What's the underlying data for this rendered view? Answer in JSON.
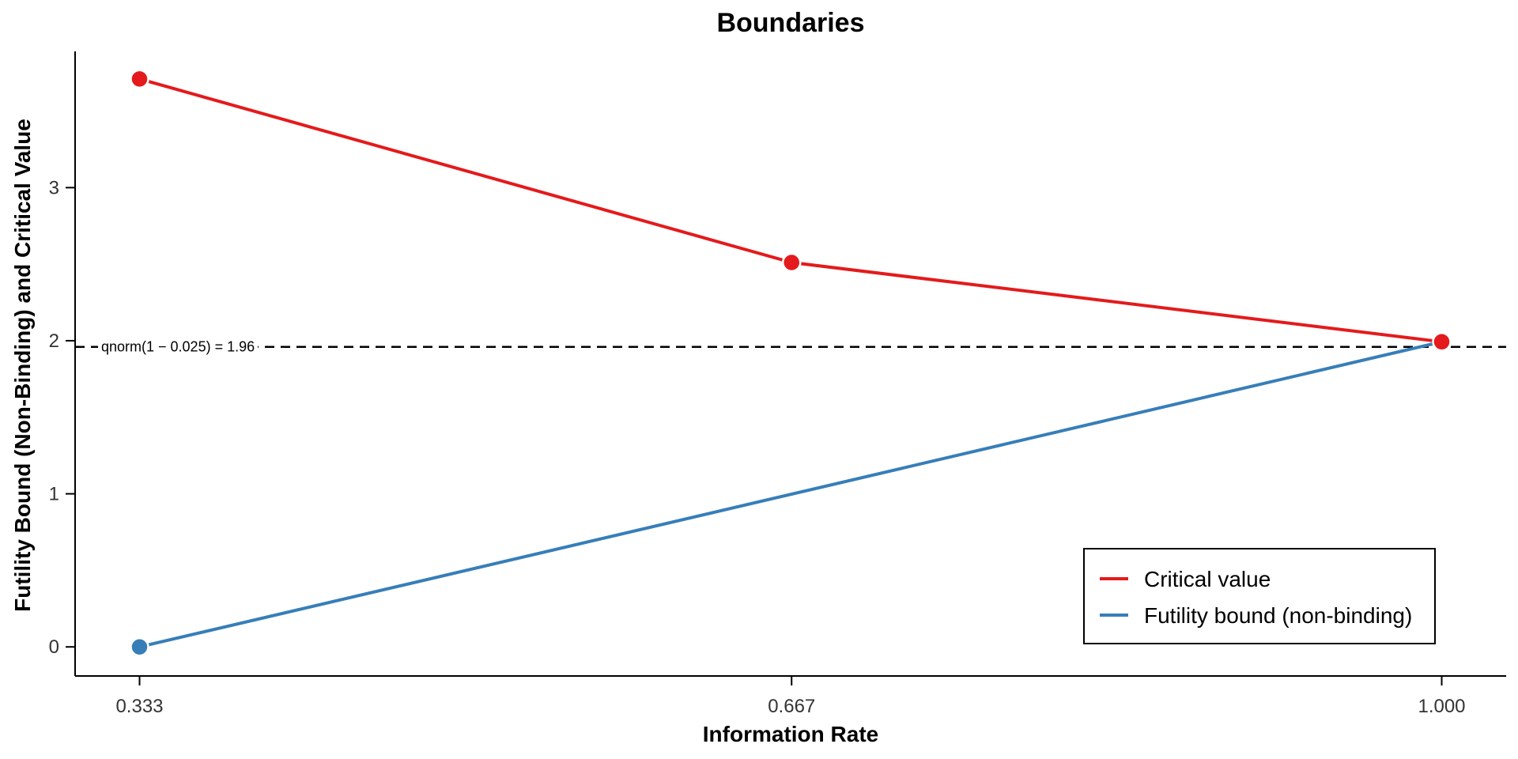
{
  "chart_data": {
    "type": "line",
    "title": "Boundaries",
    "xlabel": "Information Rate",
    "ylabel": "Futility Bound (Non-Binding) and Critical Value",
    "x": [
      0.333,
      0.667,
      1.0
    ],
    "x_tick_labels": [
      "0.333",
      "0.667",
      "1.000"
    ],
    "y_ticks": [
      0,
      1,
      2,
      3
    ],
    "y_tick_labels": [
      "0",
      "1",
      "2",
      "3"
    ],
    "xlim": [
      0.3,
      1.033
    ],
    "ylim": [
      -0.19,
      3.89
    ],
    "grid": false,
    "legend_position": "bottom-right",
    "series": [
      {
        "name": "Critical value",
        "color": "#E41A1C",
        "x": [
          0.333,
          0.667,
          1.0
        ],
        "values": [
          3.71,
          2.511,
          1.993
        ],
        "marker_points": [
          [
            0.333,
            3.71
          ],
          [
            0.667,
            2.511
          ],
          [
            1.0,
            1.993
          ]
        ]
      },
      {
        "name": "Futility bound (non-binding)",
        "color": "#377EB8",
        "x": [
          0.333,
          1.0
        ],
        "values": [
          0.0,
          1.993
        ],
        "marker_points": [
          [
            0.333,
            0.0
          ]
        ]
      }
    ],
    "reference_line": {
      "y": 1.96,
      "style": "dashed",
      "label": "qnorm(1 − 0.025) = 1.96"
    }
  }
}
